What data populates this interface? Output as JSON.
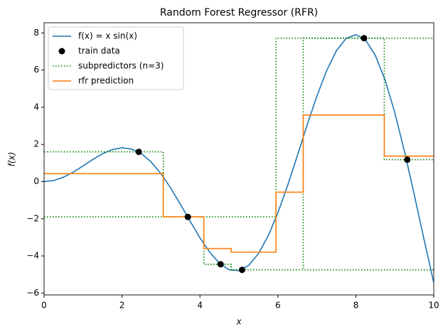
{
  "chart_data": {
    "type": "line",
    "title": "Random Forest Regressor (RFR)",
    "x_label": "x",
    "y_label": "f(x)",
    "xlim": [
      0,
      10
    ],
    "ylim": [
      -6.1,
      8.55
    ],
    "xticks": [
      0,
      2,
      4,
      6,
      8,
      10
    ],
    "yticks": [
      {
        "value": -6,
        "label": "−6"
      },
      {
        "value": -4,
        "label": "−4"
      },
      {
        "value": -2,
        "label": "−2"
      },
      0,
      2,
      4,
      6,
      8
    ],
    "legend": "upper left",
    "series": [
      {
        "name": "f(x) = x sin(x)",
        "kind": "line",
        "color": "#1f77b4",
        "x": [
          0,
          0.25,
          0.5,
          0.75,
          1,
          1.25,
          1.5,
          1.75,
          2,
          2.25,
          2.5,
          2.75,
          3,
          3.25,
          3.5,
          3.75,
          4,
          4.25,
          4.5,
          4.75,
          5,
          5.25,
          5.5,
          5.75,
          6,
          6.25,
          6.5,
          6.75,
          7,
          7.25,
          7.5,
          7.75,
          8,
          8.25,
          8.5,
          8.75,
          9,
          9.25,
          9.5,
          9.75,
          10
        ],
        "values": [
          0,
          0.06,
          0.24,
          0.51,
          0.84,
          1.19,
          1.5,
          1.72,
          1.82,
          1.75,
          1.5,
          1.05,
          0.42,
          -0.35,
          -1.23,
          -2.14,
          -3.03,
          -3.8,
          -4.4,
          -4.75,
          -4.79,
          -4.51,
          -3.88,
          -2.92,
          -1.68,
          -0.21,
          1.4,
          3.04,
          4.6,
          5.97,
          7.04,
          7.71,
          7.91,
          7.62,
          6.79,
          5.47,
          3.71,
          1.61,
          -0.71,
          -3.12,
          -5.44
        ]
      },
      {
        "name": "train data",
        "kind": "scatter",
        "color": "#000000",
        "x": [
          2.43,
          3.69,
          4.53,
          5.08,
          8.21,
          9.32
        ],
        "values": [
          1.6,
          -1.9,
          -4.45,
          -4.75,
          7.72,
          1.18
        ]
      },
      {
        "name": "subpredictors (n=3)",
        "kind": "step",
        "color": "#008000",
        "style": "dotted",
        "lines": [
          {
            "x": [
              0,
              3.06,
              4.1,
              4.8,
              6.65,
              8.73
            ],
            "values": [
              1.6,
              -1.9,
              -4.45,
              -4.75,
              7.72,
              1.18
            ]
          },
          {
            "x": [
              0,
              5.95
            ],
            "values": [
              -1.9,
              7.72
            ]
          },
          {
            "x": [
              0,
              3.06,
              4.1,
              4.8
            ],
            "values": [
              1.6,
              -1.9,
              -4.45,
              -4.75
            ]
          }
        ]
      },
      {
        "name": "rfr prediction",
        "kind": "step",
        "color": "#ff7f0e",
        "x": [
          0,
          3.06,
          4.1,
          4.8,
          5.95,
          6.65,
          8.73
        ],
        "values": [
          0.43,
          -1.9,
          -3.6,
          -3.8,
          -0.57,
          3.58,
          1.37
        ]
      }
    ]
  }
}
